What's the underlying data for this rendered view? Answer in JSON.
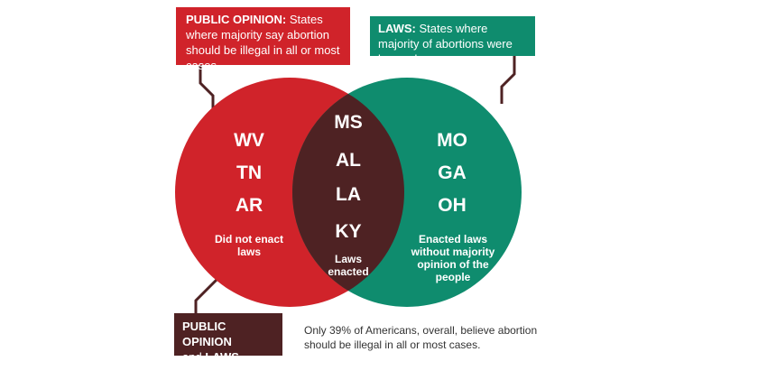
{
  "colors": {
    "red": "#D0232A",
    "green": "#0F8C6E",
    "maroon": "#4E2223",
    "connector": "#4E2223"
  },
  "opinion_box": {
    "label": "PUBLIC OPINION:",
    "text": "States where majority say abortion should be illegal in all or most cases"
  },
  "laws_box": {
    "label": "LAWS:",
    "text": "States where majority of abortions were banned"
  },
  "agree_box": {
    "line1": "PUBLIC OPINION",
    "and": "and",
    "line2": "LAWS AGREE"
  },
  "left_circle": {
    "states": [
      "WV",
      "TN",
      "AR"
    ],
    "note": "Did not enact laws"
  },
  "overlap": {
    "states": [
      "MS",
      "AL",
      "LA",
      "KY"
    ],
    "note": "Laws enacted"
  },
  "right_circle": {
    "states": [
      "MO",
      "GA",
      "OH"
    ],
    "note": "Enacted laws without majority opinion of the people"
  },
  "footnote": "Only 39% of Americans, overall, believe abortion should be illegal in all or most cases."
}
